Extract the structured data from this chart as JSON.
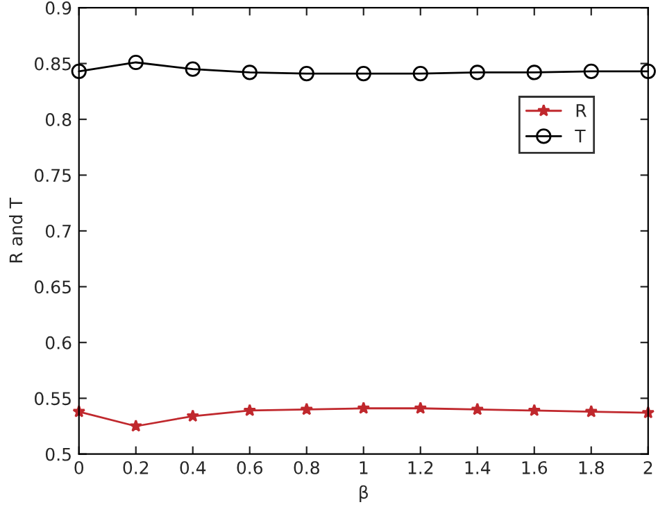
{
  "chart_data": {
    "type": "line",
    "xlabel": "β",
    "ylabel": "R and T",
    "x": [
      0,
      0.2,
      0.4,
      0.6,
      0.8,
      1,
      1.2,
      1.4,
      1.6,
      1.8,
      2
    ],
    "series": [
      {
        "name": "R",
        "color": "#c0282d",
        "marker": "star",
        "values": [
          0.538,
          0.525,
          0.534,
          0.539,
          0.54,
          0.541,
          0.541,
          0.54,
          0.539,
          0.538,
          0.537
        ]
      },
      {
        "name": "T",
        "color": "#000000",
        "marker": "circle",
        "values": [
          0.843,
          0.851,
          0.845,
          0.842,
          0.841,
          0.841,
          0.841,
          0.842,
          0.842,
          0.843,
          0.843
        ]
      }
    ],
    "xlim": [
      0,
      2
    ],
    "xticks": [
      0,
      0.2,
      0.4,
      0.6,
      0.8,
      1,
      1.2,
      1.4,
      1.6,
      1.8,
      2
    ],
    "ylim": [
      0.5,
      0.9
    ],
    "yticks": [
      0.5,
      0.55,
      0.6,
      0.65,
      0.7,
      0.75,
      0.8,
      0.85,
      0.9
    ],
    "legend": "top right",
    "grid": false,
    "line_style": "solid"
  }
}
